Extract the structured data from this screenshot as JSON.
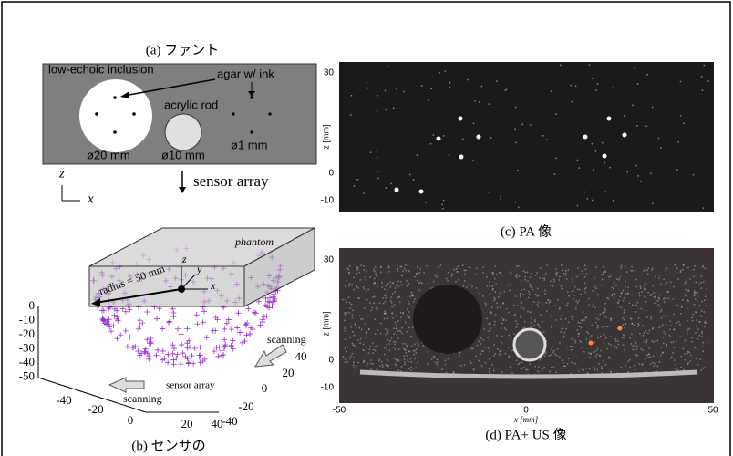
{
  "panel_a": {
    "caption": "(a)  ファント",
    "inclusion": "low-echoic inclusion",
    "agar": "agar w/ ink",
    "rod": "acrylic rod",
    "d20": "ø20 mm",
    "d10": "ø10 mm",
    "d1": "ø1 mm",
    "sensor": "sensor array",
    "z": "z",
    "x": "x"
  },
  "panel_b": {
    "caption": "(b)  センサの",
    "phantom": "phantom",
    "radius": "radius = 50 mm",
    "axis_z": "z",
    "axis_y": "y",
    "axis_x": "x",
    "zticks": [
      "0",
      "-10",
      "-20",
      "-30",
      "-40",
      "-50"
    ],
    "xticks": [
      "-40",
      "-20",
      "0",
      "20",
      "40"
    ],
    "yticks": [
      "40",
      "20",
      "0",
      "-20",
      "-40"
    ],
    "scanning_right": "scanning",
    "scanning_left": "scanning",
    "sensor": "sensor array"
  },
  "panel_c": {
    "caption": "(c)  PA 像",
    "zticks": [
      "30",
      "0",
      "-10"
    ],
    "zlabel": "z [mm]"
  },
  "panel_d": {
    "caption": "(d)  PA+ US  像",
    "zticks": [
      "30",
      "0",
      "-10"
    ],
    "xticks": [
      "-50",
      "0",
      "50"
    ],
    "zlabel": "z [mm]",
    "xlabel": "x [mm]"
  }
}
